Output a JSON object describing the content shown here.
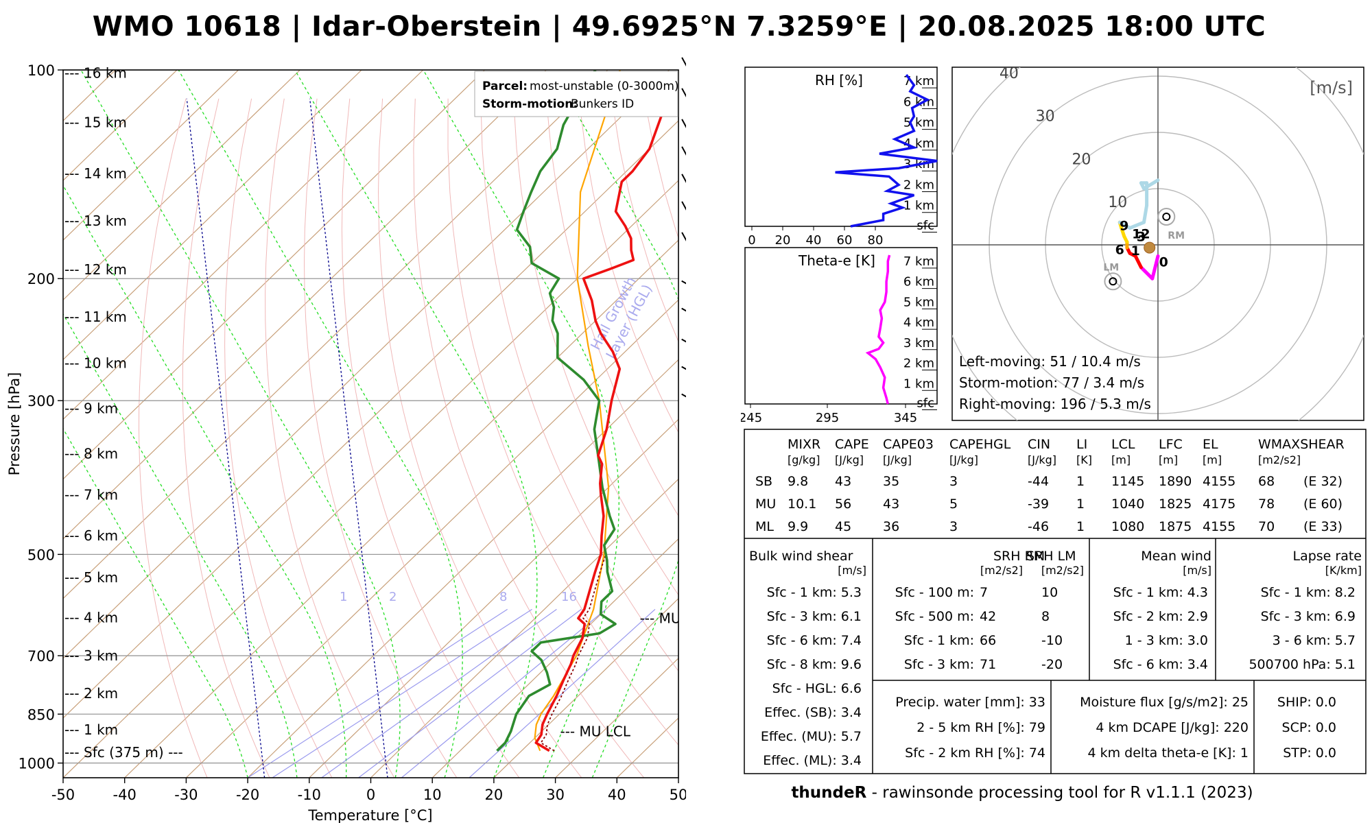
{
  "title": "WMO 10618 | Idar-Oberstein | 49.6925°N 7.3259°E | 20.08.2025 18:00 UTC",
  "footer": {
    "bold": "thundeR",
    "text": " - rawinsonde processing tool for R v1.1.1 (2023)"
  },
  "colors": {
    "temperature": "#ee1111",
    "dewpoint": "#2e8b2e",
    "parcel": "#ffa500",
    "virtual": "#8b0000",
    "hgl": "#00008b",
    "rh": "#1111ee",
    "thetae": "#ff00ff"
  },
  "legend": {
    "parcel_label": "Parcel:",
    "parcel_value": "most-unstable (0-3000m)",
    "storm_label": "Storm-motion:",
    "storm_value": "Bunkers ID"
  },
  "chart_data": [
    {
      "type": "skew-t",
      "xlabel": "Temperature [°C]",
      "ylabel": "Pressure [hPa]",
      "xlim": [
        -50,
        50
      ],
      "x_ticks": [
        "-50",
        "-40",
        "-30",
        "-20",
        "-10",
        "0",
        "10",
        "20",
        "30",
        "40",
        "50"
      ],
      "y_ticks": [
        "100",
        "200",
        "300",
        "500",
        "700",
        "850",
        "1000"
      ],
      "ylim_hpa": [
        1050,
        100
      ],
      "height_labels": [
        {
          "label": "--- 16 km",
          "p": 101
        },
        {
          "label": "--- 15 km",
          "p": 119
        },
        {
          "label": "--- 14 km",
          "p": 141
        },
        {
          "label": "--- 13 km",
          "p": 165
        },
        {
          "label": "--- 12 km",
          "p": 194
        },
        {
          "label": "--- 11 km",
          "p": 227
        },
        {
          "label": "--- 10 km",
          "p": 265
        },
        {
          "label": "--- 9 km",
          "p": 308
        },
        {
          "label": "--- 8 km",
          "p": 358
        },
        {
          "label": "--- 7 km",
          "p": 410
        },
        {
          "label": "--- 6 km",
          "p": 470
        },
        {
          "label": "--- 5 km",
          "p": 540
        },
        {
          "label": "--- 4 km",
          "p": 617
        },
        {
          "label": "--- 3 km",
          "p": 700
        },
        {
          "label": "--- 2 km",
          "p": 793
        },
        {
          "label": "--- 1 km",
          "p": 895
        },
        {
          "label": "--- Sfc (375 m) ---",
          "p": 965
        }
      ],
      "temperature": [
        {
          "p": 960,
          "t": 24.5
        },
        {
          "p": 935,
          "t": 21
        },
        {
          "p": 910,
          "t": 20.5
        },
        {
          "p": 880,
          "t": 19
        },
        {
          "p": 850,
          "t": 18
        },
        {
          "p": 800,
          "t": 16.5
        },
        {
          "p": 760,
          "t": 15
        },
        {
          "p": 720,
          "t": 13.5
        },
        {
          "p": 700,
          "t": 12.5
        },
        {
          "p": 660,
          "t": 11
        },
        {
          "p": 630,
          "t": 9
        },
        {
          "p": 618,
          "t": 7
        },
        {
          "p": 600,
          "t": 6.5
        },
        {
          "p": 560,
          "t": 4
        },
        {
          "p": 530,
          "t": 2
        },
        {
          "p": 500,
          "t": 0
        },
        {
          "p": 470,
          "t": -3
        },
        {
          "p": 440,
          "t": -6
        },
        {
          "p": 410,
          "t": -10
        },
        {
          "p": 395,
          "t": -12
        },
        {
          "p": 370,
          "t": -15
        },
        {
          "p": 360,
          "t": -17
        },
        {
          "p": 330,
          "t": -20
        },
        {
          "p": 300,
          "t": -24
        },
        {
          "p": 270,
          "t": -28
        },
        {
          "p": 255,
          "t": -32
        },
        {
          "p": 240,
          "t": -37
        },
        {
          "p": 230,
          "t": -40
        },
        {
          "p": 215,
          "t": -44
        },
        {
          "p": 200,
          "t": -49
        },
        {
          "p": 193,
          "t": -46
        },
        {
          "p": 188,
          "t": -44
        },
        {
          "p": 182,
          "t": -46
        },
        {
          "p": 175,
          "t": -48
        },
        {
          "p": 168,
          "t": -51
        },
        {
          "p": 160,
          "t": -55
        },
        {
          "p": 145,
          "t": -59
        },
        {
          "p": 140,
          "t": -59
        },
        {
          "p": 130,
          "t": -60
        },
        {
          "p": 115,
          "t": -64
        },
        {
          "p": 105,
          "t": -66
        },
        {
          "p": 100,
          "t": -67
        }
      ],
      "dewpoint": [
        {
          "p": 960,
          "t": 16
        },
        {
          "p": 935,
          "t": 16
        },
        {
          "p": 900,
          "t": 15
        },
        {
          "p": 850,
          "t": 13
        },
        {
          "p": 800,
          "t": 12
        },
        {
          "p": 770,
          "t": 13.5
        },
        {
          "p": 740,
          "t": 11
        },
        {
          "p": 710,
          "t": 8
        },
        {
          "p": 690,
          "t": 5
        },
        {
          "p": 670,
          "t": 5
        },
        {
          "p": 650,
          "t": 13
        },
        {
          "p": 630,
          "t": 14
        },
        {
          "p": 610,
          "t": 10
        },
        {
          "p": 585,
          "t": 8
        },
        {
          "p": 565,
          "t": 8
        },
        {
          "p": 530,
          "t": 4
        },
        {
          "p": 510,
          "t": 2
        },
        {
          "p": 485,
          "t": -1
        },
        {
          "p": 460,
          "t": -2
        },
        {
          "p": 440,
          "t": -5
        },
        {
          "p": 400,
          "t": -11
        },
        {
          "p": 360,
          "t": -17
        },
        {
          "p": 330,
          "t": -22
        },
        {
          "p": 300,
          "t": -26
        },
        {
          "p": 280,
          "t": -32
        },
        {
          "p": 260,
          "t": -40
        },
        {
          "p": 240,
          "t": -44
        },
        {
          "p": 230,
          "t": -47
        },
        {
          "p": 220,
          "t": -49
        },
        {
          "p": 210,
          "t": -52
        },
        {
          "p": 200,
          "t": -53
        },
        {
          "p": 190,
          "t": -60
        },
        {
          "p": 180,
          "t": -63
        },
        {
          "p": 170,
          "t": -68
        },
        {
          "p": 160,
          "t": -70
        },
        {
          "p": 150,
          "t": -72
        },
        {
          "p": 140,
          "t": -74
        },
        {
          "p": 130,
          "t": -75
        },
        {
          "p": 120,
          "t": -78
        },
        {
          "p": 110,
          "t": -80
        },
        {
          "p": 100,
          "t": -82
        }
      ],
      "parcel": [
        {
          "p": 960,
          "t": 23
        },
        {
          "p": 920,
          "t": 20
        },
        {
          "p": 880,
          "t": 18
        },
        {
          "p": 850,
          "t": 17
        },
        {
          "p": 800,
          "t": 16
        },
        {
          "p": 700,
          "t": 13
        },
        {
          "p": 600,
          "t": 8
        },
        {
          "p": 500,
          "t": 0.5
        },
        {
          "p": 400,
          "t": -10
        },
        {
          "p": 300,
          "t": -26
        },
        {
          "p": 250,
          "t": -37
        },
        {
          "p": 200,
          "t": -50
        },
        {
          "p": 150,
          "t": -64
        },
        {
          "p": 100,
          "t": -78
        }
      ],
      "hgl_lines": [
        {
          "t_at_1000": -20
        },
        {
          "t_at_1000": 0
        }
      ],
      "hgl_label": "Hail Growth\nLayer (HGL)",
      "mixing_ratio_labels": [
        "1",
        "2",
        "8",
        "16"
      ],
      "annotations": [
        {
          "label": "--- MU EL",
          "p": 618,
          "t": 17
        },
        {
          "label": "--- MU LCL",
          "p": 900,
          "t": 23
        }
      ]
    },
    {
      "type": "line",
      "title": "RH [%]",
      "x_ticks": [
        "0",
        "20",
        "40",
        "60",
        "80"
      ],
      "y_ticks": [
        "7 km",
        "6 km",
        "5 km",
        "4 km",
        "3 km",
        "2 km",
        "1 km",
        "sfc"
      ],
      "xlim": [
        0,
        100
      ],
      "ylim_km": [
        0,
        7.4
      ],
      "values": [
        {
          "h": 0,
          "x": 55
        },
        {
          "h": 0.3,
          "x": 72
        },
        {
          "h": 0.6,
          "x": 72
        },
        {
          "h": 0.9,
          "x": 82
        },
        {
          "h": 1.1,
          "x": 76
        },
        {
          "h": 1.5,
          "x": 88
        },
        {
          "h": 1.7,
          "x": 74
        },
        {
          "h": 2.0,
          "x": 80
        },
        {
          "h": 2.4,
          "x": 75
        },
        {
          "h": 2.6,
          "x": 47
        },
        {
          "h": 2.8,
          "x": 80
        },
        {
          "h": 3.15,
          "x": 100
        },
        {
          "h": 3.5,
          "x": 70
        },
        {
          "h": 3.8,
          "x": 88
        },
        {
          "h": 4.2,
          "x": 78
        },
        {
          "h": 4.6,
          "x": 88
        },
        {
          "h": 5.0,
          "x": 86
        },
        {
          "h": 5.3,
          "x": 88
        },
        {
          "h": 5.7,
          "x": 87
        },
        {
          "h": 6.1,
          "x": 95
        },
        {
          "h": 6.5,
          "x": 86
        },
        {
          "h": 6.8,
          "x": 88
        },
        {
          "h": 7.3,
          "x": 84
        }
      ]
    },
    {
      "type": "line",
      "title": "Theta-e [K]",
      "x_ticks": [
        "245",
        "295",
        "345"
      ],
      "y_ticks": [
        "7 km",
        "6 km",
        "5 km",
        "4 km",
        "3 km",
        "2 km",
        "1 km",
        "sfc"
      ],
      "xlim": [
        245,
        370
      ],
      "ylim_km": [
        0,
        7.4
      ],
      "values": [
        {
          "h": 0,
          "x": 338
        },
        {
          "h": 0.3,
          "x": 337
        },
        {
          "h": 0.8,
          "x": 335
        },
        {
          "h": 1.3,
          "x": 336
        },
        {
          "h": 1.8,
          "x": 333
        },
        {
          "h": 2.2,
          "x": 330
        },
        {
          "h": 2.5,
          "x": 325
        },
        {
          "h": 2.7,
          "x": 332
        },
        {
          "h": 3.0,
          "x": 335
        },
        {
          "h": 3.3,
          "x": 332
        },
        {
          "h": 3.7,
          "x": 333
        },
        {
          "h": 4.2,
          "x": 334
        },
        {
          "h": 4.6,
          "x": 333
        },
        {
          "h": 5.0,
          "x": 336
        },
        {
          "h": 5.5,
          "x": 337
        },
        {
          "h": 6.0,
          "x": 337
        },
        {
          "h": 6.5,
          "x": 338
        },
        {
          "h": 7.0,
          "x": 338
        },
        {
          "h": 7.3,
          "x": 339
        }
      ]
    },
    {
      "type": "hodograph",
      "title": "[m/s]",
      "ring_labels": [
        "10",
        "20",
        "30",
        "40"
      ],
      "hodo_pts": [
        {
          "u": 0,
          "v": -2,
          "c": "#ff00ff"
        },
        {
          "u": -1,
          "v": -6,
          "c": "#ff00ff"
        },
        {
          "u": -3,
          "v": -4,
          "c": "#ff00ff"
        },
        {
          "u": -4,
          "v": -2,
          "c": "#ff0000"
        },
        {
          "u": -5,
          "v": -1.5,
          "c": "#ff0000"
        },
        {
          "u": -5.5,
          "v": -0.5,
          "c": "#ff0000"
        },
        {
          "u": -5.5,
          "v": 0.5,
          "c": "#ffa500"
        },
        {
          "u": -6,
          "v": 1.5,
          "c": "#ffd700"
        },
        {
          "u": -6.5,
          "v": 3,
          "c": "#ffd700"
        },
        {
          "u": -6.8,
          "v": 4,
          "c": "#ffd700"
        },
        {
          "u": -5,
          "v": 3,
          "c": "#add8e6"
        },
        {
          "u": -2.5,
          "v": 4,
          "c": "#add8e6"
        },
        {
          "u": -2,
          "v": 7,
          "c": "#add8e6"
        },
        {
          "u": -2,
          "v": 11,
          "c": "#add8e6"
        },
        {
          "u": -3,
          "v": 11,
          "c": "#add8e6"
        },
        {
          "u": -2.5,
          "v": 10,
          "c": "#add8e6"
        },
        {
          "u": 0,
          "v": 11.5,
          "c": "#add8e6"
        }
      ],
      "height_marks": [
        {
          "label": "0",
          "u": 1,
          "v": -3
        },
        {
          "label": "1",
          "u": -4,
          "v": -1
        },
        {
          "label": "6",
          "u": -6.8,
          "v": -0.8
        },
        {
          "label": "3",
          "u": -3,
          "v": 1.5
        },
        {
          "label": "12",
          "u": -3,
          "v": 2
        },
        {
          "label": "9",
          "u": -6,
          "v": 3.5
        }
      ],
      "rm": {
        "label": "RM",
        "u": 1.5,
        "v": 5
      },
      "lm": {
        "label": "LM",
        "u": -8,
        "v": -6.5
      },
      "motions": [
        "Left-moving: 51 / 10.4 m/s",
        "Storm-motion: 77 / 3.4 m/s",
        "Right-moving: 196 / 5.3 m/s"
      ]
    }
  ],
  "table": {
    "params_header": [
      "MIXR",
      "CAPE",
      "CAPE03",
      "CAPEHGL",
      "CIN",
      "LI",
      "LCL",
      "LFC",
      "EL",
      "WMAXSHEAR"
    ],
    "params_units": [
      "[g/kg]",
      "[J/kg]",
      "[J/kg]",
      "[J/kg]",
      "[J/kg]",
      "[K]",
      "[m]",
      "[m]",
      "[m]",
      "[m2/s2]"
    ],
    "params_rows": [
      [
        "SB",
        "9.8",
        "43",
        "35",
        "3",
        "-44",
        "1",
        "1145",
        "1890",
        "4155",
        "68",
        "(E 32)"
      ],
      [
        "MU",
        "10.1",
        "56",
        "43",
        "5",
        "-39",
        "1",
        "1040",
        "1825",
        "4175",
        "78",
        "(E 60)"
      ],
      [
        "ML",
        "9.9",
        "45",
        "36",
        "3",
        "-46",
        "1",
        "1080",
        "1875",
        "4155",
        "70",
        "(E 33)"
      ]
    ],
    "shear": {
      "title": "Bulk wind shear",
      "unit": "[m/s]",
      "rows": [
        "Sfc - 1 km: 5.3",
        "Sfc - 3 km: 6.1",
        "Sfc - 6 km: 7.4",
        "Sfc - 8 km: 9.6",
        "Sfc - HGL: 6.6",
        "Effec. (SB): 3.4",
        "Effec. (MU): 5.7",
        "Effec. (ML): 3.4"
      ]
    },
    "srh": {
      "title_rm": "SRH RM",
      "title_lm": "SRH LM",
      "unit_rm": "[m2/s2]",
      "unit_lm": "[m2/s2]",
      "rows": [
        [
          "Sfc - 100 m:",
          "7",
          "10"
        ],
        [
          "Sfc - 500 m:",
          "42",
          "8"
        ],
        [
          "Sfc - 1 km:",
          "66",
          "-10"
        ],
        [
          "Sfc - 3 km:",
          "71",
          "-20"
        ]
      ]
    },
    "mean_wind": {
      "title": "Mean wind",
      "unit": "[m/s]",
      "rows": [
        "Sfc - 1 km: 4.3",
        "Sfc - 2 km: 2.9",
        "1 - 3 km: 3.0",
        "Sfc - 6 km: 3.4"
      ]
    },
    "lapse": {
      "title": "Lapse rate",
      "unit": "[K/km]",
      "rows": [
        "Sfc - 1 km: 8.2",
        "Sfc - 3 km: 6.9",
        "3 - 6 km: 5.7",
        "500700 hPa: 5.1"
      ]
    },
    "moisture": [
      "Precip. water [mm]: 33",
      "2 - 5 km RH [%]: 79",
      "Sfc - 2 km RH [%]: 74"
    ],
    "flux": [
      "Moisture flux [g/s/m2]: 25",
      "4 km DCAPE [J/kg]: 220",
      "4 km delta theta-e [K]: 1"
    ],
    "composites": [
      "SHIP: 0.0",
      "SCP: 0.0",
      "STP: 0.0"
    ]
  }
}
